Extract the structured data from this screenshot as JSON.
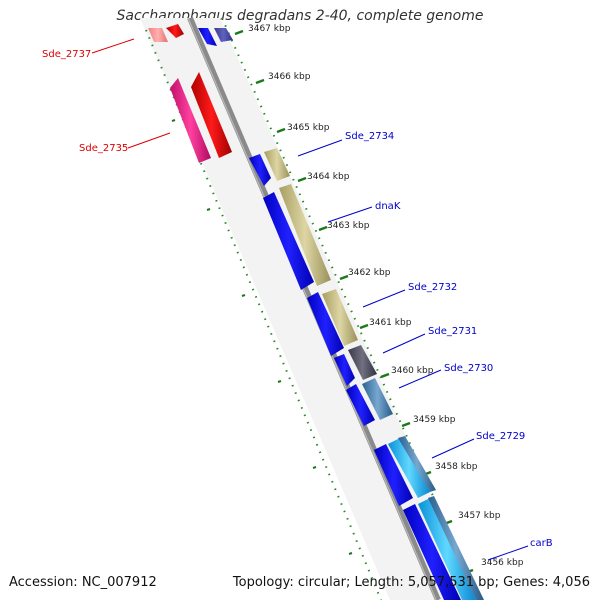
{
  "title": "Saccharophagus degradans 2-40, complete genome",
  "footer": {
    "accession": "Accession: NC_007912",
    "summary": "Topology: circular; Length: 5,057,531 bp; Genes: 4,056"
  },
  "ticks": [
    "3467 kbp",
    "3466 kbp",
    "3465 kbp",
    "3464 kbp",
    "3463 kbp",
    "3462 kbp",
    "3461 kbp",
    "3460 kbp",
    "3459 kbp",
    "3458 kbp",
    "3457 kbp",
    "3456 kbp"
  ],
  "gene_labels": [
    {
      "name": "Sde_2737",
      "strand": "minus"
    },
    {
      "name": "Sde_2735",
      "strand": "minus"
    },
    {
      "name": "Sde_2734",
      "strand": "plus"
    },
    {
      "name": "dnaK",
      "strand": "plus"
    },
    {
      "name": "Sde_2732",
      "strand": "plus"
    },
    {
      "name": "Sde_2731",
      "strand": "plus"
    },
    {
      "name": "Sde_2730",
      "strand": "plus"
    },
    {
      "name": "Sde_2729",
      "strand": "plus"
    },
    {
      "name": "carB",
      "strand": "plus"
    }
  ],
  "colors": {
    "minus_label": "#dd0000",
    "plus_label": "#0000cc",
    "backbone": "#8a8a8a",
    "tick": "#1a7a1a",
    "gene_blue": "#1010ee",
    "gene_khaki": "#c8c08a",
    "gene_red": "#ee0000",
    "gene_pink": "#f0208a",
    "gene_grey": "#5a5a6a",
    "gene_steel": "#4a80b0",
    "gene_cyan": "#20b0f0"
  }
}
